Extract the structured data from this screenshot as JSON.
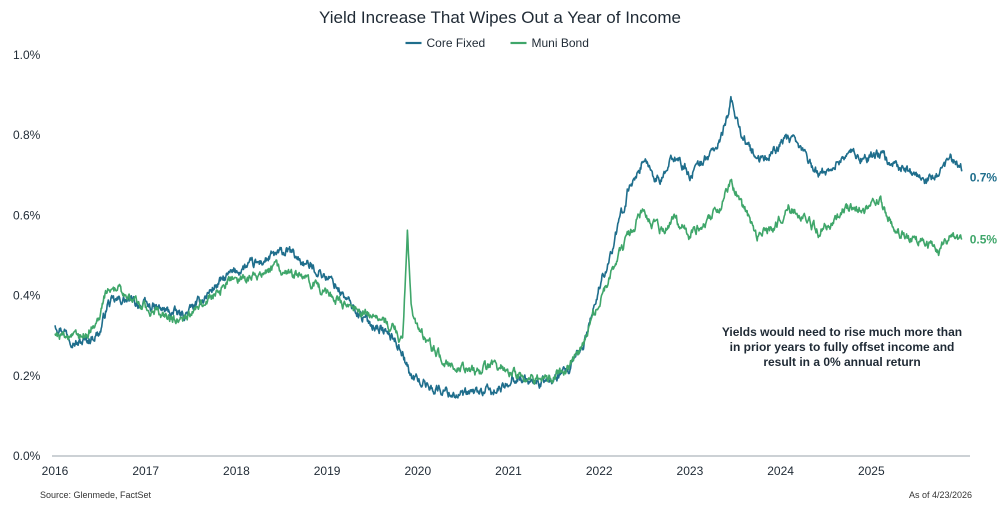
{
  "chart_data": {
    "type": "line",
    "title": "Yield Increase That Wipes Out a Year of Income",
    "xlabel": "",
    "ylabel": "",
    "x_ticks": [
      "2016",
      "2017",
      "2018",
      "2019",
      "2020",
      "2021",
      "2022",
      "2023",
      "2024",
      "2025"
    ],
    "y_ticks": [
      "0.0%",
      "0.2%",
      "0.4%",
      "0.6%",
      "0.8%",
      "1.0%"
    ],
    "xlim": [
      "2016-01-01",
      "2026-01-01"
    ],
    "ylim": [
      0,
      1.0
    ],
    "y_unit": "%",
    "grid": false,
    "legend_position": "top-center",
    "annotation": "Yields would need to rise much more than in prior years to fully offset income and result in a 0% annual return",
    "source": "Source: Glenmede, FactSet",
    "as_of": "As of 4/23/2026",
    "series": [
      {
        "name": "Core Fixed",
        "color": "#1f6e8c",
        "end_label": "0.7%",
        "points": [
          [
            "2016-01-01",
            0.33
          ],
          [
            "2016-02-15",
            0.31
          ],
          [
            "2016-04-01",
            0.28
          ],
          [
            "2016-05-15",
            0.29
          ],
          [
            "2016-07-01",
            0.31
          ],
          [
            "2016-08-01",
            0.38
          ],
          [
            "2016-10-01",
            0.39
          ],
          [
            "2016-12-01",
            0.38
          ],
          [
            "2017-02-01",
            0.37
          ],
          [
            "2017-04-01",
            0.36
          ],
          [
            "2017-06-01",
            0.35
          ],
          [
            "2017-08-01",
            0.38
          ],
          [
            "2017-10-01",
            0.42
          ],
          [
            "2017-12-01",
            0.45
          ],
          [
            "2018-02-01",
            0.47
          ],
          [
            "2018-04-01",
            0.48
          ],
          [
            "2018-06-01",
            0.5
          ],
          [
            "2018-08-01",
            0.51
          ],
          [
            "2018-10-01",
            0.48
          ],
          [
            "2018-12-01",
            0.46
          ],
          [
            "2019-02-01",
            0.43
          ],
          [
            "2019-04-01",
            0.38
          ],
          [
            "2019-06-01",
            0.34
          ],
          [
            "2019-08-01",
            0.32
          ],
          [
            "2019-10-01",
            0.29
          ],
          [
            "2019-11-01",
            0.26
          ],
          [
            "2019-12-01",
            0.2
          ],
          [
            "2020-01-01",
            0.19
          ],
          [
            "2020-03-01",
            0.17
          ],
          [
            "2020-05-01",
            0.16
          ],
          [
            "2020-07-01",
            0.15
          ],
          [
            "2020-09-01",
            0.16
          ],
          [
            "2020-11-01",
            0.16
          ],
          [
            "2020-12-15",
            0.17
          ],
          [
            "2021-01-15",
            0.2
          ],
          [
            "2021-03-01",
            0.19
          ],
          [
            "2021-05-01",
            0.18
          ],
          [
            "2021-07-01",
            0.19
          ],
          [
            "2021-09-01",
            0.21
          ],
          [
            "2021-11-01",
            0.28
          ],
          [
            "2022-01-01",
            0.42
          ],
          [
            "2022-03-01",
            0.53
          ],
          [
            "2022-05-01",
            0.67
          ],
          [
            "2022-07-01",
            0.74
          ],
          [
            "2022-09-01",
            0.68
          ],
          [
            "2022-11-01",
            0.75
          ],
          [
            "2023-01-01",
            0.7
          ],
          [
            "2023-03-01",
            0.74
          ],
          [
            "2023-05-01",
            0.78
          ],
          [
            "2023-06-15",
            0.88
          ],
          [
            "2023-08-01",
            0.8
          ],
          [
            "2023-10-01",
            0.73
          ],
          [
            "2023-12-01",
            0.76
          ],
          [
            "2024-02-01",
            0.79
          ],
          [
            "2024-04-01",
            0.76
          ],
          [
            "2024-06-01",
            0.7
          ],
          [
            "2024-08-01",
            0.72
          ],
          [
            "2024-10-01",
            0.76
          ],
          [
            "2024-12-01",
            0.74
          ],
          [
            "2025-02-01",
            0.75
          ],
          [
            "2025-04-01",
            0.73
          ],
          [
            "2025-06-01",
            0.71
          ],
          [
            "2025-08-01",
            0.68
          ],
          [
            "2025-10-01",
            0.7
          ],
          [
            "2025-11-15",
            0.74
          ],
          [
            "2025-12-31",
            0.71
          ]
        ]
      },
      {
        "name": "Muni Bond",
        "color": "#3fa66a",
        "end_label": "0.5%",
        "points": [
          [
            "2016-01-01",
            0.3
          ],
          [
            "2016-02-15",
            0.3
          ],
          [
            "2016-04-01",
            0.29
          ],
          [
            "2016-05-15",
            0.31
          ],
          [
            "2016-07-01",
            0.35
          ],
          [
            "2016-08-01",
            0.42
          ],
          [
            "2016-10-01",
            0.41
          ],
          [
            "2016-12-01",
            0.38
          ],
          [
            "2017-02-01",
            0.36
          ],
          [
            "2017-04-01",
            0.35
          ],
          [
            "2017-06-01",
            0.34
          ],
          [
            "2017-08-01",
            0.37
          ],
          [
            "2017-10-01",
            0.4
          ],
          [
            "2017-12-01",
            0.44
          ],
          [
            "2018-02-01",
            0.44
          ],
          [
            "2018-04-01",
            0.45
          ],
          [
            "2018-06-01",
            0.47
          ],
          [
            "2018-08-01",
            0.46
          ],
          [
            "2018-10-01",
            0.44
          ],
          [
            "2018-12-01",
            0.42
          ],
          [
            "2019-02-01",
            0.39
          ],
          [
            "2019-04-01",
            0.37
          ],
          [
            "2019-06-01",
            0.36
          ],
          [
            "2019-08-01",
            0.34
          ],
          [
            "2019-10-01",
            0.32
          ],
          [
            "2019-11-01",
            0.28
          ],
          [
            "2019-11-20",
            0.56
          ],
          [
            "2019-12-05",
            0.36
          ],
          [
            "2020-01-01",
            0.32
          ],
          [
            "2020-03-01",
            0.27
          ],
          [
            "2020-05-01",
            0.23
          ],
          [
            "2020-07-01",
            0.22
          ],
          [
            "2020-09-01",
            0.21
          ],
          [
            "2020-11-01",
            0.23
          ],
          [
            "2020-12-15",
            0.22
          ],
          [
            "2021-01-15",
            0.21
          ],
          [
            "2021-03-01",
            0.19
          ],
          [
            "2021-05-01",
            0.19
          ],
          [
            "2021-07-01",
            0.2
          ],
          [
            "2021-09-01",
            0.22
          ],
          [
            "2021-11-01",
            0.28
          ],
          [
            "2022-01-01",
            0.39
          ],
          [
            "2022-03-01",
            0.47
          ],
          [
            "2022-05-01",
            0.56
          ],
          [
            "2022-07-01",
            0.61
          ],
          [
            "2022-09-01",
            0.56
          ],
          [
            "2022-11-01",
            0.59
          ],
          [
            "2023-01-01",
            0.55
          ],
          [
            "2023-03-01",
            0.58
          ],
          [
            "2023-05-01",
            0.62
          ],
          [
            "2023-06-15",
            0.69
          ],
          [
            "2023-08-01",
            0.62
          ],
          [
            "2023-10-01",
            0.55
          ],
          [
            "2023-12-01",
            0.57
          ],
          [
            "2024-02-01",
            0.62
          ],
          [
            "2024-04-01",
            0.6
          ],
          [
            "2024-06-01",
            0.56
          ],
          [
            "2024-08-01",
            0.58
          ],
          [
            "2024-10-01",
            0.62
          ],
          [
            "2024-12-01",
            0.61
          ],
          [
            "2025-02-01",
            0.64
          ],
          [
            "2025-04-01",
            0.57
          ],
          [
            "2025-06-01",
            0.54
          ],
          [
            "2025-08-01",
            0.53
          ],
          [
            "2025-10-01",
            0.51
          ],
          [
            "2025-11-15",
            0.55
          ],
          [
            "2025-12-31",
            0.54
          ]
        ]
      }
    ]
  }
}
